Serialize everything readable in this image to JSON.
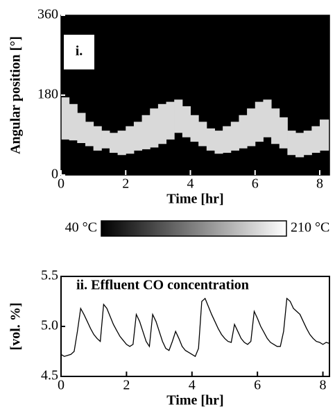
{
  "chart_data": [
    {
      "type": "heatmap",
      "label": "i.",
      "xlabel": "Time [hr]",
      "ylabel": "Angular position [°]",
      "xlim": [
        0,
        8.3
      ],
      "xticks": [
        0,
        2,
        4,
        6,
        8
      ],
      "ylim": [
        0,
        360
      ],
      "yticks": [
        0,
        180,
        360
      ],
      "x": [
        0,
        0.25,
        0.5,
        0.75,
        1.0,
        1.25,
        1.5,
        1.75,
        2.0,
        2.25,
        2.5,
        2.75,
        3.0,
        3.25,
        3.5,
        3.75,
        4.0,
        4.25,
        4.5,
        4.75,
        5.0,
        5.25,
        5.5,
        5.75,
        6.0,
        6.25,
        6.5,
        6.75,
        7.0,
        7.25,
        7.5,
        7.75,
        8.0
      ],
      "band_low": [
        80,
        78,
        72,
        65,
        55,
        60,
        50,
        45,
        48,
        55,
        58,
        62,
        70,
        80,
        95,
        85,
        75,
        65,
        55,
        48,
        50,
        55,
        60,
        65,
        75,
        85,
        70,
        60,
        45,
        40,
        45,
        50,
        55
      ],
      "band_high": [
        175,
        160,
        140,
        120,
        110,
        100,
        95,
        100,
        110,
        120,
        135,
        150,
        160,
        165,
        170,
        155,
        135,
        120,
        105,
        100,
        110,
        120,
        135,
        150,
        165,
        170,
        150,
        130,
        100,
        95,
        100,
        110,
        125
      ],
      "color": "#d9d9d9",
      "colormap": [
        "#000000",
        "#ffffff"
      ],
      "clim": [
        40,
        210
      ],
      "cticks": [
        {
          "value": 40,
          "label": "40 °C"
        },
        {
          "value": 210,
          "label": "210 °C"
        }
      ]
    },
    {
      "type": "line",
      "title": "ii. Effluent CO concentration",
      "xlabel": "Time [hr]",
      "ylabel": "[vol. %]",
      "xlim": [
        0,
        8.2
      ],
      "xticks": [
        0,
        2,
        4,
        6,
        8
      ],
      "ylim": [
        4.5,
        5.5
      ],
      "yticks": [
        4.5,
        {
          "value": 5.0,
          "label": "5.0"
        },
        5.5
      ],
      "color": "#000000",
      "x": [
        0,
        0.1,
        0.2,
        0.3,
        0.4,
        0.5,
        0.6,
        0.7,
        0.8,
        0.9,
        1.0,
        1.1,
        1.2,
        1.3,
        1.4,
        1.5,
        1.6,
        1.7,
        1.8,
        1.9,
        2.0,
        2.1,
        2.2,
        2.3,
        2.4,
        2.5,
        2.6,
        2.7,
        2.8,
        2.9,
        3.0,
        3.1,
        3.2,
        3.3,
        3.4,
        3.5,
        3.6,
        3.7,
        3.8,
        3.9,
        4.0,
        4.1,
        4.2,
        4.3,
        4.4,
        4.5,
        4.6,
        4.7,
        4.8,
        4.9,
        5.0,
        5.1,
        5.2,
        5.3,
        5.4,
        5.5,
        5.6,
        5.7,
        5.8,
        5.9,
        6.0,
        6.1,
        6.2,
        6.3,
        6.4,
        6.5,
        6.6,
        6.7,
        6.8,
        6.9,
        7.0,
        7.1,
        7.2,
        7.3,
        7.4,
        7.5,
        7.6,
        7.7,
        7.8,
        7.9,
        8.0,
        8.1,
        8.2
      ],
      "values": [
        4.72,
        4.7,
        4.71,
        4.72,
        4.75,
        4.95,
        5.18,
        5.12,
        5.05,
        4.98,
        4.92,
        4.88,
        4.85,
        5.22,
        5.18,
        5.1,
        5.02,
        4.96,
        4.9,
        4.86,
        4.82,
        4.8,
        4.82,
        5.12,
        5.05,
        4.95,
        4.85,
        4.8,
        5.12,
        5.05,
        4.95,
        4.85,
        4.78,
        4.76,
        4.85,
        4.95,
        4.88,
        4.8,
        4.76,
        4.74,
        4.72,
        4.7,
        4.78,
        5.25,
        5.28,
        5.2,
        5.12,
        5.05,
        4.98,
        4.92,
        4.88,
        4.85,
        4.84,
        5.02,
        4.95,
        4.88,
        4.84,
        4.82,
        4.85,
        5.15,
        5.08,
        5.0,
        4.94,
        4.88,
        4.84,
        4.82,
        4.8,
        4.8,
        4.95,
        5.28,
        5.25,
        5.18,
        5.15,
        5.12,
        5.05,
        4.98,
        4.92,
        4.88,
        4.85,
        4.84,
        4.82,
        4.84,
        4.83
      ]
    }
  ]
}
